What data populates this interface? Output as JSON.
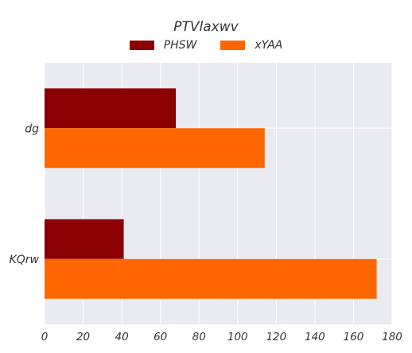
{
  "chart_data": {
    "type": "bar",
    "orientation": "horizontal",
    "title": "PTVlaxwv",
    "categories": [
      "dg",
      "KQrw"
    ],
    "series": [
      {
        "name": "PHSW",
        "values": [
          68,
          41
        ],
        "color": "#8b0000"
      },
      {
        "name": "xYAA",
        "values": [
          114,
          172
        ],
        "color": "#ff6600"
      }
    ],
    "xlim": [
      0,
      180
    ],
    "xticks": [
      0,
      20,
      40,
      60,
      80,
      100,
      120,
      140,
      160,
      180
    ],
    "grid": true,
    "legend_position": "top-center",
    "background": "#eaeaf2"
  }
}
